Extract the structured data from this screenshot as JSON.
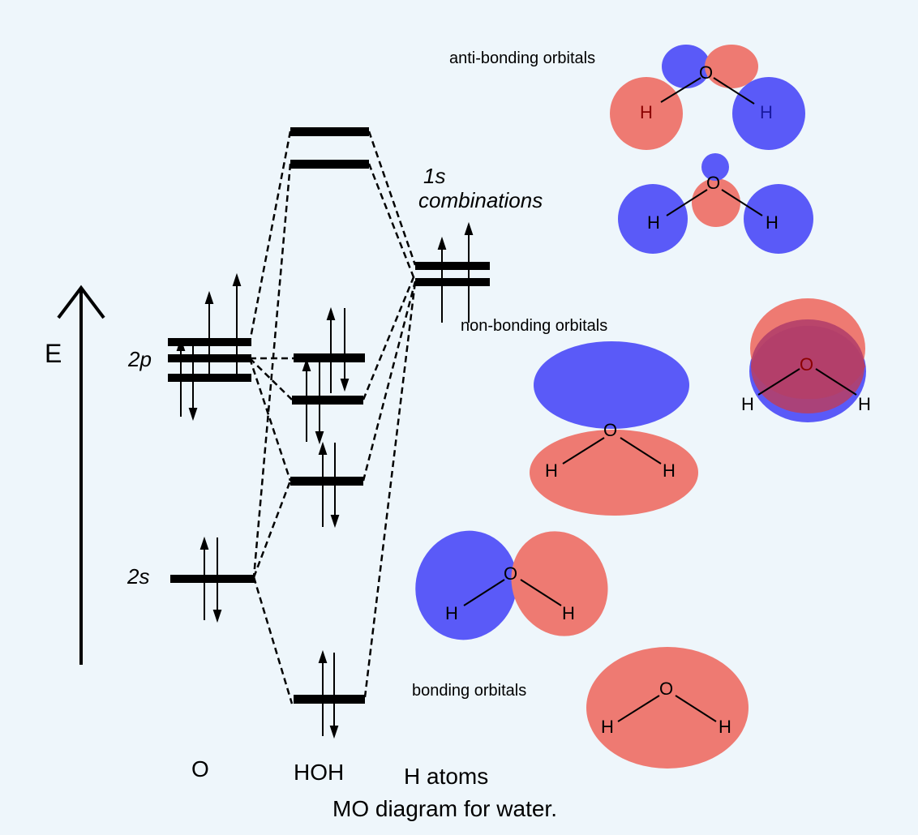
{
  "axis": {
    "label": "E"
  },
  "oxygen": {
    "label_2p": "2p",
    "label_2s": "2s",
    "column_label": "O"
  },
  "water": {
    "column_label": "HOH"
  },
  "hydrogen": {
    "group_label_line1": "1s",
    "group_label_line2": "combinations",
    "column_label": "H atoms"
  },
  "sections": {
    "antibonding": "anti-bonding orbitals",
    "nonbonding": "non-bonding orbitals",
    "bonding": "bonding orbitals"
  },
  "atoms": {
    "oxygen": "O",
    "hydrogen": "H"
  },
  "caption": "MO diagram for water.",
  "colors": {
    "background": "#eef6fb",
    "lobe_blue": "#5a5af8",
    "lobe_red": "#ee7a72",
    "overlap": "#b23f6a"
  }
}
